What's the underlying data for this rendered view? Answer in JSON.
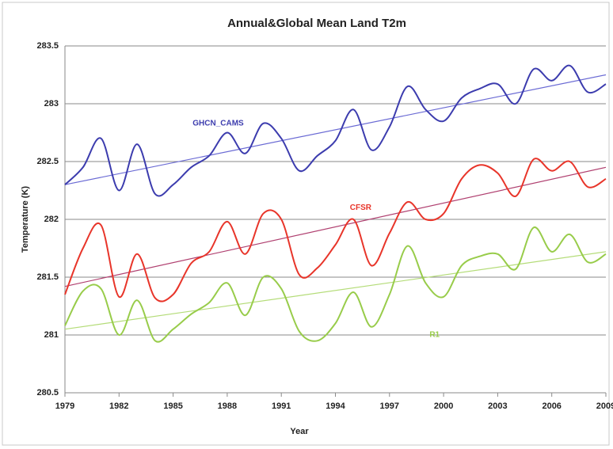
{
  "chart_data": {
    "type": "line",
    "title": "Annual&Global Mean Land T2m",
    "x_label": "Year",
    "y_label": "Temperature (K)",
    "x": [
      1979,
      1980,
      1981,
      1982,
      1983,
      1984,
      1985,
      1986,
      1987,
      1988,
      1989,
      1990,
      1991,
      1992,
      1993,
      1994,
      1995,
      1996,
      1997,
      1998,
      1999,
      2000,
      2001,
      2002,
      2003,
      2004,
      2005,
      2006,
      2007,
      2008,
      2009
    ],
    "xlim": [
      1979,
      2009
    ],
    "xticks": [
      1979,
      1982,
      1985,
      1988,
      1991,
      1994,
      1997,
      2000,
      2003,
      2006,
      2009
    ],
    "ylim": [
      280.5,
      283.5
    ],
    "yticks": [
      280.5,
      281,
      281.5,
      282,
      282.5,
      283,
      283.5
    ],
    "grid": true,
    "series": [
      {
        "name": "GHCN_CAMS",
        "color": "#3c3cae",
        "trend_color": "#6a6ad4",
        "values": [
          282.3,
          282.45,
          282.7,
          282.25,
          282.65,
          282.22,
          282.3,
          282.45,
          282.55,
          282.75,
          282.57,
          282.83,
          282.7,
          282.42,
          282.55,
          282.68,
          282.95,
          282.6,
          282.8,
          283.15,
          282.95,
          282.85,
          283.05,
          283.13,
          283.17,
          283.0,
          283.3,
          283.2,
          283.33,
          283.1,
          283.17
        ],
        "trend": [
          282.3,
          283.25
        ]
      },
      {
        "name": "CFSR",
        "color": "#e8352a",
        "trend_color": "#b04070",
        "values": [
          281.35,
          281.75,
          281.95,
          281.33,
          281.7,
          281.32,
          281.35,
          281.62,
          281.72,
          281.98,
          281.7,
          282.05,
          282.0,
          281.52,
          281.58,
          281.78,
          282.0,
          281.6,
          281.88,
          282.15,
          282.0,
          282.05,
          282.35,
          282.47,
          282.4,
          282.2,
          282.52,
          282.42,
          282.5,
          282.28,
          282.35
        ],
        "trend": [
          281.42,
          282.45
        ]
      },
      {
        "name": "R1",
        "color": "#98cc4a",
        "trend_color": "#b4dc78",
        "values": [
          281.08,
          281.38,
          281.4,
          281.0,
          281.3,
          280.95,
          281.05,
          281.18,
          281.28,
          281.45,
          281.17,
          281.5,
          281.4,
          281.03,
          280.95,
          281.1,
          281.37,
          281.07,
          281.35,
          281.77,
          281.45,
          281.33,
          281.6,
          281.68,
          281.7,
          281.57,
          281.93,
          281.72,
          281.87,
          281.63,
          281.7
        ],
        "trend": [
          281.05,
          281.72
        ]
      }
    ]
  }
}
